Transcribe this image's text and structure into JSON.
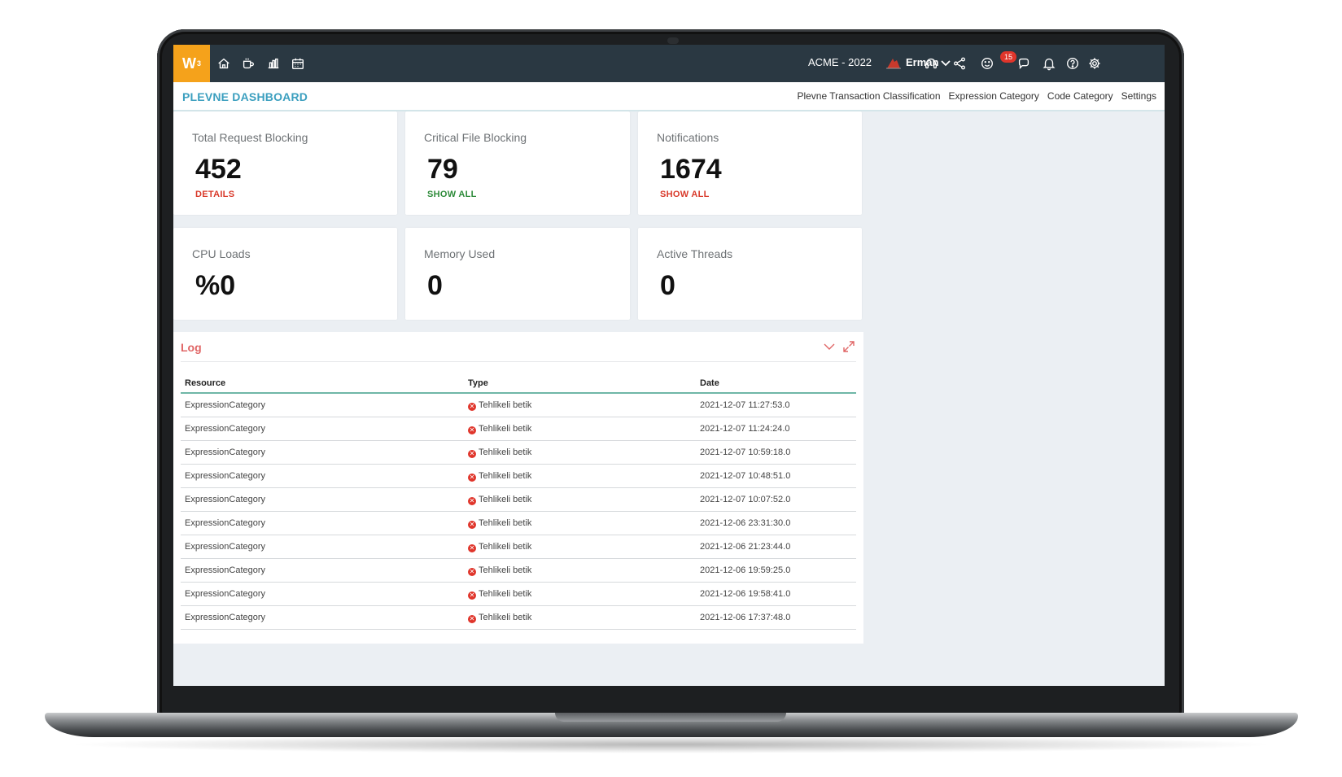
{
  "app": {
    "logo_text": "W",
    "logo_superscript": "3",
    "company": "ACME - 2022",
    "user": "Erman",
    "notification_count": "15",
    "colors": {
      "topbar": "#2a3842",
      "logo": "#f5a21b",
      "accent": "#3b9fbf",
      "danger": "#e0352b"
    }
  },
  "nav_icons": [
    "home-icon",
    "coffee-cup-icon",
    "bar-chart-icon",
    "calendar-icon"
  ],
  "header_icons": [
    "headset-icon",
    "share-icon",
    "smiley-icon",
    "chat-icon",
    "bell-icon",
    "help-icon",
    "gear-icon"
  ],
  "subheader": {
    "title": "PLEVNE DASHBOARD",
    "links": [
      "Plevne Transaction Classification",
      "Expression Category",
      "Code Category",
      "Settings"
    ]
  },
  "cards": [
    {
      "label": "Total Request Blocking",
      "value": "452",
      "link": "DETAILS"
    },
    {
      "label": "Critical File Blocking",
      "value": "79",
      "link": "SHOW ALL"
    },
    {
      "label": "Notifications",
      "value": "1674",
      "link": "SHOW ALL"
    },
    {
      "label": "CPU Loads",
      "value": "%0"
    },
    {
      "label": "Memory Used",
      "value": "0"
    },
    {
      "label": "Active Threads",
      "value": "0"
    }
  ],
  "log": {
    "title": "Log",
    "columns": [
      "Resource",
      "Type",
      "Date"
    ],
    "rows": [
      [
        "ExpressionCategory",
        "Tehlikeli betik",
        "2021-12-07 11:27:53.0"
      ],
      [
        "ExpressionCategory",
        "Tehlikeli betik",
        "2021-12-07 11:24:24.0"
      ],
      [
        "ExpressionCategory",
        "Tehlikeli betik",
        "2021-12-07 10:59:18.0"
      ],
      [
        "ExpressionCategory",
        "Tehlikeli betik",
        "2021-12-07 10:48:51.0"
      ],
      [
        "ExpressionCategory",
        "Tehlikeli betik",
        "2021-12-07 10:07:52.0"
      ],
      [
        "ExpressionCategory",
        "Tehlikeli betik",
        "2021-12-06 23:31:30.0"
      ],
      [
        "ExpressionCategory",
        "Tehlikeli betik",
        "2021-12-06 21:23:44.0"
      ],
      [
        "ExpressionCategory",
        "Tehlikeli betik",
        "2021-12-06 19:59:25.0"
      ],
      [
        "ExpressionCategory",
        "Tehlikeli betik",
        "2021-12-06 19:58:41.0"
      ],
      [
        "ExpressionCategory",
        "Tehlikeli betik",
        "2021-12-06 17:37:48.0"
      ]
    ]
  }
}
